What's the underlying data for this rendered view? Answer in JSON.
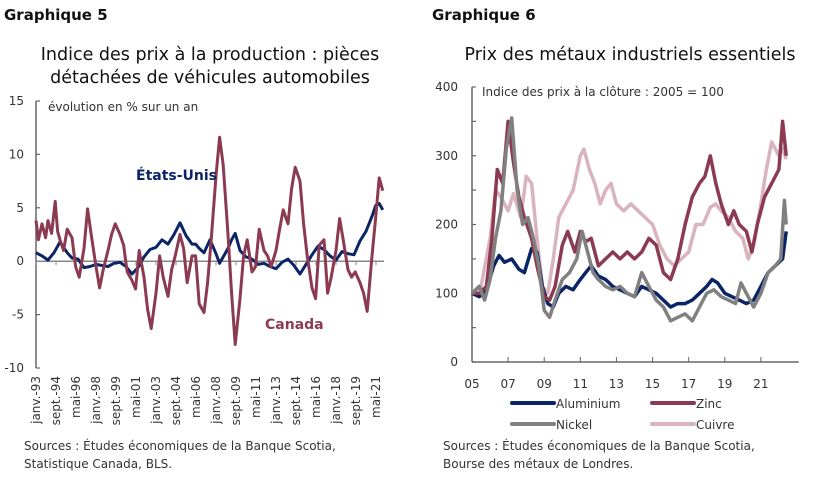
{
  "panels": [
    {
      "label": "Graphique 5",
      "title_line1": "Indice des prix à la production : pièces",
      "title_line2": "détachées de véhicules automobiles",
      "sources_line1": "Sources : Études économiques de la Banque Scotia,",
      "sources_line2": "Statistique Canada, BLS."
    },
    {
      "label": "Graphique 6",
      "title_line1": "Prix des métaux industriels essentiels",
      "sources_line1": "Sources : Études économiques de la Banque Scotia,",
      "sources_line2": "Bourse des métaux de Londres."
    }
  ],
  "chart_data": [
    {
      "type": "line",
      "title": "Indice des prix à la production : pièces détachées de véhicules automobiles",
      "ylabel": "évolution en % sur un an",
      "ylim": [
        -10,
        15
      ],
      "yticks": [
        15,
        10,
        5,
        0,
        -5,
        -10
      ],
      "xlim": [
        1993.0,
        2022.0
      ],
      "xticks": [
        {
          "label": "janv.-93",
          "x": 1993.0
        },
        {
          "label": "sept.-94",
          "x": 1994.67
        },
        {
          "label": "mai-96",
          "x": 1996.33
        },
        {
          "label": "janv.-98",
          "x": 1998.0
        },
        {
          "label": "sept.-99",
          "x": 1999.67
        },
        {
          "label": "mai-01",
          "x": 2001.33
        },
        {
          "label": "janv.-03",
          "x": 2003.0
        },
        {
          "label": "sept.-04",
          "x": 2004.67
        },
        {
          "label": "mai-06",
          "x": 2006.33
        },
        {
          "label": "janv.-08",
          "x": 2008.0
        },
        {
          "label": "sept.-09",
          "x": 2009.67
        },
        {
          "label": "mai-11",
          "x": 2011.33
        },
        {
          "label": "janv.-13",
          "x": 2013.0
        },
        {
          "label": "sept.-14",
          "x": 2014.67
        },
        {
          "label": "mai-16",
          "x": 2016.33
        },
        {
          "label": "janv.-18",
          "x": 2018.0
        },
        {
          "label": "sept.-19",
          "x": 2019.67
        },
        {
          "label": "mai-21",
          "x": 2021.33
        }
      ],
      "annotations": [
        {
          "text": "États-Unis",
          "series": "États-Unis"
        },
        {
          "text": "Canada",
          "series": "Canada"
        }
      ],
      "series": [
        {
          "name": "États-Unis",
          "color": "#0b2466",
          "x": [
            1993.0,
            1993.5,
            1994.0,
            1994.5,
            1995.0,
            1995.3,
            1995.6,
            1996.0,
            1996.5,
            1997.0,
            1997.5,
            1998.0,
            1998.5,
            1999.0,
            1999.5,
            2000.0,
            2000.5,
            2001.0,
            2001.5,
            2002.0,
            2002.5,
            2003.0,
            2003.5,
            2004.0,
            2004.5,
            2005.0,
            2005.5,
            2006.0,
            2006.3,
            2006.6,
            2007.0,
            2007.5,
            2008.0,
            2008.3,
            2008.6,
            2009.0,
            2009.3,
            2009.6,
            2010.0,
            2010.5,
            2011.0,
            2011.5,
            2012.0,
            2012.5,
            2013.0,
            2013.5,
            2014.0,
            2014.5,
            2015.0,
            2015.5,
            2016.0,
            2016.5,
            2017.0,
            2017.5,
            2018.0,
            2018.5,
            2019.0,
            2019.5,
            2020.0,
            2020.5,
            2021.0,
            2021.3,
            2021.6,
            2021.9
          ],
          "values": [
            0.8,
            0.5,
            0.1,
            0.8,
            1.8,
            1.3,
            0.8,
            0.3,
            0.2,
            -0.6,
            -0.5,
            -0.3,
            -0.4,
            -0.5,
            -0.2,
            -0.1,
            -0.5,
            -1.2,
            -0.6,
            0.4,
            1.1,
            1.3,
            2.0,
            1.6,
            2.5,
            3.6,
            2.4,
            1.6,
            1.6,
            1.2,
            0.8,
            2.0,
            0.7,
            -0.2,
            0.4,
            1.2,
            2.0,
            2.6,
            1.0,
            0.4,
            0.2,
            -0.3,
            -0.2,
            -0.5,
            -0.7,
            -0.1,
            0.2,
            -0.4,
            -1.2,
            -0.3,
            0.6,
            1.4,
            1.1,
            0.5,
            0.1,
            0.9,
            0.7,
            0.6,
            1.9,
            2.8,
            4.2,
            5.2,
            5.4,
            4.8
          ]
        },
        {
          "name": "Canada",
          "color": "#8b3a52",
          "x": [
            1993.0,
            1993.2,
            1993.5,
            1993.8,
            1994.0,
            1994.3,
            1994.6,
            1994.8,
            1995.0,
            1995.3,
            1995.6,
            1996.0,
            1996.3,
            1996.6,
            1997.0,
            1997.3,
            1997.6,
            1998.0,
            1998.3,
            1998.6,
            1999.0,
            1999.3,
            1999.6,
            2000.0,
            2000.3,
            2000.6,
            2001.0,
            2001.3,
            2001.6,
            2002.0,
            2002.3,
            2002.6,
            2003.0,
            2003.3,
            2003.6,
            2004.0,
            2004.3,
            2004.6,
            2005.0,
            2005.3,
            2005.6,
            2006.0,
            2006.3,
            2006.6,
            2007.0,
            2007.3,
            2007.6,
            2008.0,
            2008.3,
            2008.6,
            2009.0,
            2009.3,
            2009.6,
            2010.0,
            2010.3,
            2010.6,
            2011.0,
            2011.3,
            2011.6,
            2012.0,
            2012.3,
            2012.6,
            2013.0,
            2013.3,
            2013.6,
            2014.0,
            2014.3,
            2014.6,
            2015.0,
            2015.3,
            2015.6,
            2016.0,
            2016.3,
            2016.6,
            2017.0,
            2017.3,
            2017.6,
            2018.0,
            2018.3,
            2018.6,
            2019.0,
            2019.3,
            2019.6,
            2020.0,
            2020.3,
            2020.6,
            2021.0,
            2021.3,
            2021.6,
            2021.9
          ],
          "values": [
            3.8,
            2.0,
            3.5,
            2.2,
            3.8,
            2.6,
            5.6,
            2.8,
            2.0,
            1.0,
            3.0,
            2.2,
            -0.5,
            -1.5,
            1.2,
            4.9,
            2.5,
            -0.5,
            -2.5,
            -0.8,
            1.0,
            2.5,
            3.5,
            2.5,
            1.5,
            -1.0,
            -1.8,
            -2.6,
            1.0,
            -1.5,
            -4.5,
            -6.3,
            -3.0,
            0.5,
            -1.5,
            -3.3,
            -0.8,
            0.5,
            2.5,
            1.2,
            -2.0,
            0.5,
            0.5,
            -4.0,
            -4.8,
            -2.0,
            2.0,
            8.0,
            11.6,
            9.0,
            2.5,
            -3.0,
            -7.8,
            -3.5,
            0.5,
            2.0,
            -1.0,
            -0.5,
            3.0,
            1.0,
            0.5,
            -0.5,
            1.0,
            3.0,
            4.8,
            3.5,
            6.8,
            8.8,
            7.5,
            3.5,
            0.5,
            -2.5,
            -3.5,
            1.5,
            2.0,
            -3.0,
            -1.5,
            1.0,
            4.0,
            2.0,
            -0.8,
            -1.5,
            -1.0,
            -2.0,
            -3.0,
            -4.7,
            0.5,
            4.0,
            7.8,
            6.6
          ]
        }
      ]
    },
    {
      "type": "line",
      "title": "Prix des métaux industriels essentiels",
      "ylabel": "Indice des prix à la clôture : 2005 = 100",
      "ylim": [
        0,
        400
      ],
      "yticks": [
        400,
        300,
        200,
        100,
        0
      ],
      "xlim": [
        2005,
        2023
      ],
      "xticks": [
        "05",
        "07",
        "09",
        "11",
        "13",
        "15",
        "17",
        "19",
        "21"
      ],
      "legend": "bottom",
      "series": [
        {
          "name": "Aluminium",
          "color": "#0b2466",
          "x": [
            2005.0,
            2005.4,
            2005.8,
            2006.2,
            2006.5,
            2006.8,
            2007.2,
            2007.6,
            2007.9,
            2008.3,
            2008.6,
            2008.9,
            2009.2,
            2009.5,
            2009.8,
            2010.2,
            2010.6,
            2011.0,
            2011.3,
            2011.6,
            2012.0,
            2012.4,
            2012.8,
            2013.2,
            2013.6,
            2014.0,
            2014.4,
            2014.8,
            2015.2,
            2015.6,
            2016.0,
            2016.4,
            2016.8,
            2017.2,
            2017.6,
            2018.0,
            2018.3,
            2018.6,
            2019.0,
            2019.4,
            2019.8,
            2020.2,
            2020.6,
            2021.0,
            2021.4,
            2021.8,
            2022.2,
            2022.4
          ],
          "values": [
            100,
            95,
            105,
            140,
            155,
            145,
            150,
            135,
            130,
            165,
            160,
            110,
            85,
            80,
            100,
            110,
            105,
            120,
            130,
            140,
            125,
            120,
            110,
            105,
            100,
            95,
            110,
            105,
            100,
            90,
            80,
            85,
            85,
            90,
            100,
            110,
            120,
            115,
            100,
            95,
            90,
            85,
            90,
            110,
            130,
            140,
            150,
            190
          ]
        },
        {
          "name": "Zinc",
          "color": "#8b3a52",
          "x": [
            2005.0,
            2005.4,
            2005.8,
            2006.1,
            2006.4,
            2006.7,
            2007.0,
            2007.3,
            2007.6,
            2007.9,
            2008.3,
            2008.6,
            2009.0,
            2009.3,
            2009.6,
            2010.0,
            2010.3,
            2010.7,
            2011.0,
            2011.3,
            2011.6,
            2012.0,
            2012.4,
            2012.8,
            2013.2,
            2013.6,
            2014.0,
            2014.4,
            2014.8,
            2015.2,
            2015.6,
            2016.0,
            2016.4,
            2016.8,
            2017.2,
            2017.6,
            2017.9,
            2018.2,
            2018.5,
            2018.8,
            2019.2,
            2019.5,
            2019.8,
            2020.2,
            2020.5,
            2020.8,
            2021.2,
            2021.6,
            2022.0,
            2022.2,
            2022.4
          ],
          "values": [
            100,
            100,
            110,
            180,
            280,
            260,
            350,
            290,
            240,
            210,
            180,
            140,
            95,
            90,
            110,
            170,
            190,
            160,
            190,
            175,
            180,
            140,
            150,
            160,
            150,
            160,
            150,
            160,
            180,
            170,
            130,
            120,
            150,
            200,
            240,
            260,
            270,
            300,
            260,
            230,
            200,
            220,
            200,
            190,
            160,
            200,
            240,
            260,
            280,
            350,
            300
          ]
        },
        {
          "name": "Nickel",
          "color": "#808080",
          "x": [
            2005.0,
            2005.4,
            2005.7,
            2006.0,
            2006.3,
            2006.6,
            2006.9,
            2007.2,
            2007.5,
            2007.8,
            2008.1,
            2008.4,
            2008.7,
            2009.0,
            2009.3,
            2009.6,
            2010.0,
            2010.4,
            2010.8,
            2011.1,
            2011.4,
            2011.7,
            2012.0,
            2012.4,
            2012.8,
            2013.2,
            2013.6,
            2014.0,
            2014.4,
            2014.8,
            2015.2,
            2015.6,
            2016.0,
            2016.4,
            2016.8,
            2017.2,
            2017.6,
            2018.0,
            2018.4,
            2018.8,
            2019.2,
            2019.6,
            2019.9,
            2020.2,
            2020.6,
            2021.0,
            2021.4,
            2021.8,
            2022.1,
            2022.3,
            2022.4
          ],
          "values": [
            100,
            110,
            90,
            120,
            180,
            220,
            310,
            355,
            250,
            200,
            210,
            180,
            140,
            75,
            65,
            90,
            120,
            130,
            150,
            190,
            160,
            130,
            120,
            110,
            105,
            110,
            100,
            95,
            130,
            110,
            90,
            80,
            60,
            65,
            70,
            60,
            80,
            100,
            105,
            95,
            90,
            85,
            115,
            100,
            80,
            100,
            130,
            140,
            150,
            235,
            200
          ]
        },
        {
          "name": "Cuivre",
          "color": "#d9b3bd",
          "x": [
            2005.0,
            2005.5,
            2006.0,
            2006.3,
            2006.6,
            2007.0,
            2007.3,
            2007.7,
            2008.0,
            2008.3,
            2008.6,
            2008.9,
            2009.2,
            2009.5,
            2009.8,
            2010.2,
            2010.6,
            2011.0,
            2011.2,
            2011.5,
            2011.8,
            2012.1,
            2012.4,
            2012.7,
            2013.0,
            2013.4,
            2013.8,
            2014.2,
            2014.6,
            2015.0,
            2015.4,
            2015.8,
            2016.2,
            2016.6,
            2017.0,
            2017.4,
            2017.8,
            2018.2,
            2018.5,
            2018.8,
            2019.2,
            2019.6,
            2020.0,
            2020.3,
            2020.6,
            2021.0,
            2021.3,
            2021.6,
            2022.0,
            2022.2,
            2022.4
          ],
          "values": [
            100,
            110,
            180,
            250,
            240,
            220,
            245,
            210,
            270,
            260,
            180,
            110,
            100,
            150,
            210,
            230,
            250,
            300,
            310,
            280,
            260,
            230,
            250,
            260,
            230,
            220,
            230,
            220,
            210,
            200,
            170,
            150,
            140,
            150,
            160,
            200,
            200,
            225,
            230,
            220,
            210,
            190,
            180,
            150,
            170,
            230,
            280,
            320,
            300,
            310,
            295
          ]
        }
      ]
    }
  ]
}
